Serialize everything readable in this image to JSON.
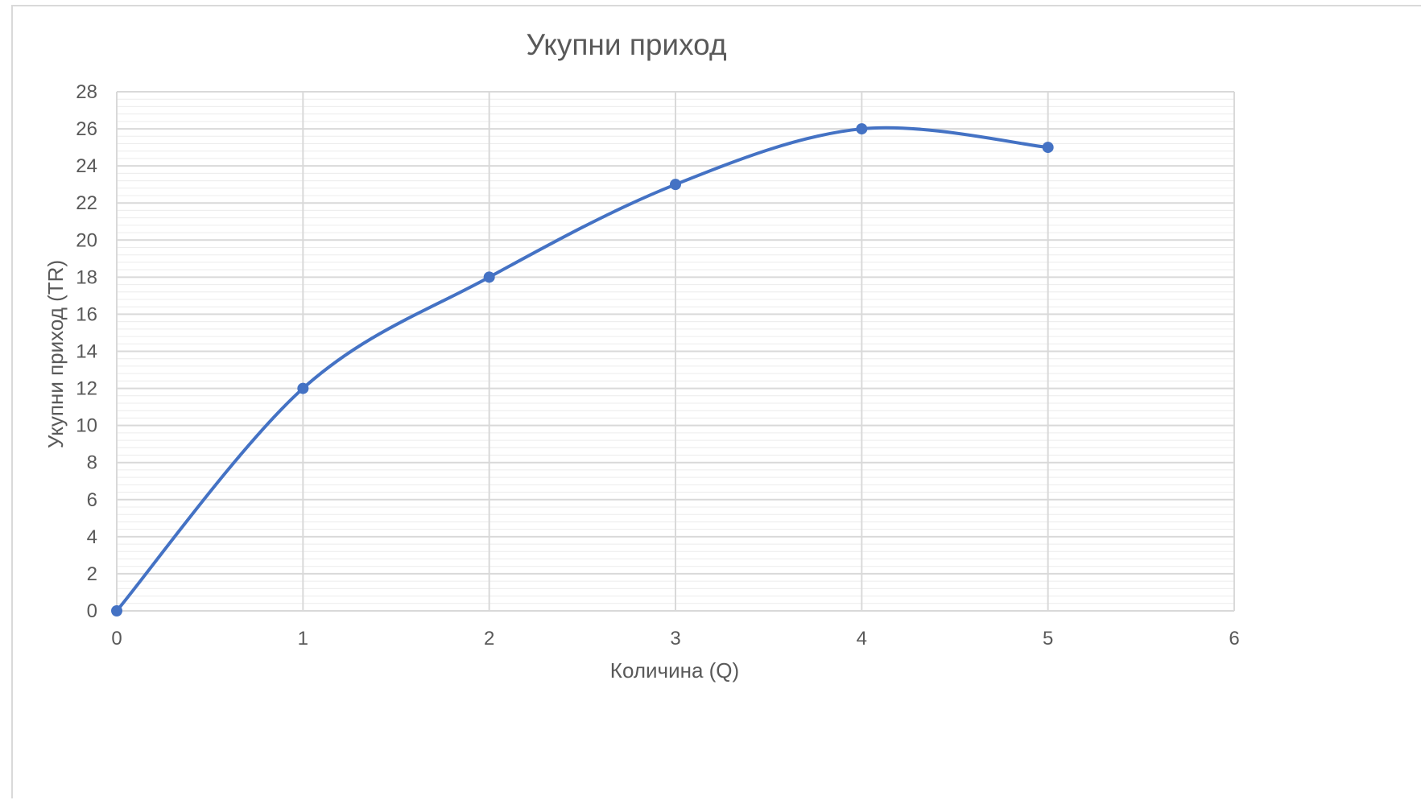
{
  "chart_data": {
    "type": "scatter",
    "title": "Укупни приход",
    "xlabel": "Количина (Q)",
    "ylabel": "Укупни приход (TR)",
    "xlim": [
      0,
      6
    ],
    "ylim": [
      0,
      28
    ],
    "x_major_unit": 1,
    "y_major_unit": 2,
    "y_minor_unit": 0.4,
    "x_ticks": [
      "0",
      "1",
      "2",
      "3",
      "4",
      "5",
      "6"
    ],
    "y_ticks": [
      "0",
      "2",
      "4",
      "6",
      "8",
      "10",
      "12",
      "14",
      "16",
      "18",
      "20",
      "22",
      "24",
      "26",
      "28"
    ],
    "grid": {
      "major": true,
      "minor_y": true
    },
    "smooth": true,
    "markers": true,
    "legend": "none",
    "series": [
      {
        "x": [
          0,
          1,
          2,
          3,
          4,
          5
        ],
        "y": [
          0,
          12,
          18,
          23,
          26,
          25
        ],
        "color": "#4472C4"
      }
    ]
  }
}
